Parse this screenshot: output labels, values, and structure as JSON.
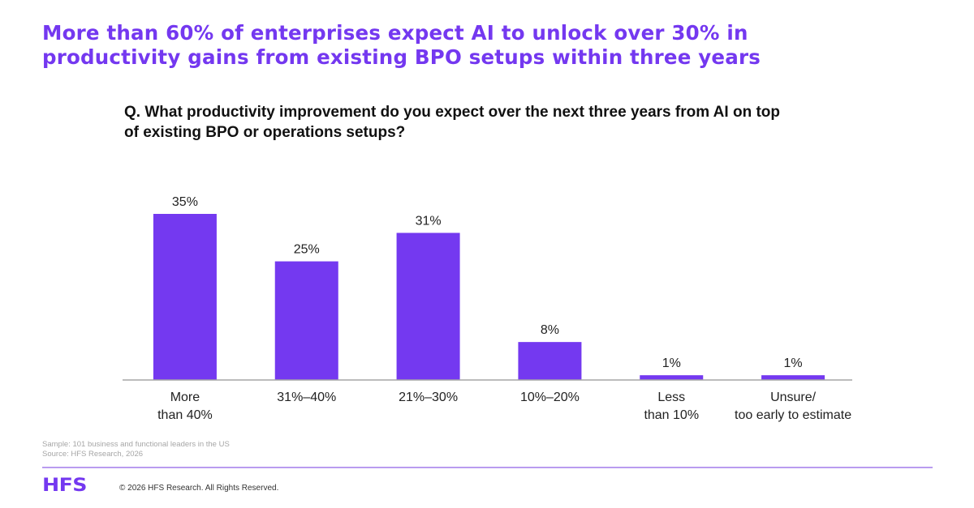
{
  "header": {
    "title_line1": "More than 60% of enterprises expect AI to unlock over 30% in",
    "title_line2": "productivity gains from existing BPO setups within three years",
    "question_line1": "Q. What productivity improvement do you expect over the next three years from AI on top",
    "question_line2": "of existing BPO or operations setups?"
  },
  "notes": {
    "sample": "Sample: 101 business and functional leaders in the US",
    "source": "Source: HFS Research, 2026"
  },
  "footer": {
    "logo": "HFS",
    "copyright": "© 2026 HFS Research. All Rights Reserved."
  },
  "colors": {
    "accent": "#7438f0",
    "bar": "#7439f0",
    "axis": "#a6a6a6",
    "footer_rule": "#b99cf0"
  },
  "chart_data": {
    "type": "bar",
    "title": "Q. What productivity improvement do you expect over the next three years from AI on top of existing BPO or operations setups?",
    "categories": [
      [
        "More",
        "than 40%"
      ],
      [
        "31%–40%"
      ],
      [
        "21%–30%"
      ],
      [
        "10%–20%"
      ],
      [
        "Less",
        "than 10%"
      ],
      [
        "Unsure/",
        "too early to estimate"
      ]
    ],
    "values": [
      35,
      25,
      31,
      8,
      1,
      1
    ],
    "value_labels": [
      "35%",
      "25%",
      "31%",
      "8%",
      "1%",
      "1%"
    ],
    "unit": "%",
    "xlabel": "",
    "ylabel": "",
    "ylim": [
      0,
      35
    ],
    "grid": false,
    "legend": "none"
  }
}
